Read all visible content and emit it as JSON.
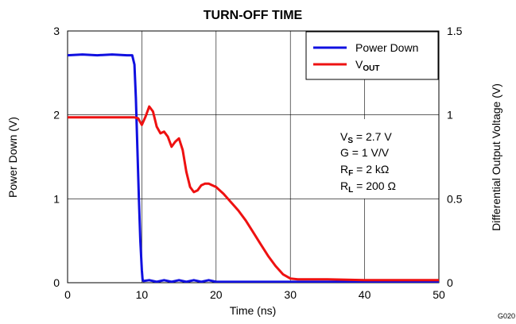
{
  "chart_data": {
    "type": "line",
    "title": "TURN-OFF TIME",
    "xlabel": "Time (ns)",
    "ylabel_left": "Power Down (V)",
    "ylabel_right": "Differential Output Voltage (V)",
    "xlim": [
      0,
      50
    ],
    "ylim_left": [
      0,
      3
    ],
    "ylim_right": [
      0,
      1.5
    ],
    "x_ticks": [
      "0",
      "10",
      "20",
      "30",
      "40",
      "50"
    ],
    "y_left_ticks": [
      "0",
      "1",
      "2",
      "3"
    ],
    "y_right_ticks": [
      "0",
      "0.5",
      "1",
      "1.5"
    ],
    "grid": true,
    "legend_position": "top-right",
    "series": [
      {
        "name": "Power Down",
        "axis": "left",
        "color": "#1010e0",
        "x": [
          0,
          2,
          4,
          6,
          8,
          8.7,
          9.0,
          9.2,
          9.4,
          9.6,
          9.8,
          10.0,
          10.1,
          10.2,
          11,
          12,
          13,
          14,
          15,
          16,
          17,
          18,
          19,
          20,
          25,
          30,
          35,
          40,
          45,
          50
        ],
        "y": [
          2.71,
          2.72,
          2.71,
          2.72,
          2.71,
          2.71,
          2.6,
          2.2,
          1.6,
          1.0,
          0.5,
          0.15,
          0.04,
          0.02,
          0.03,
          0.01,
          0.03,
          0.01,
          0.03,
          0.01,
          0.03,
          0.01,
          0.03,
          0.01,
          0.01,
          0.01,
          0.01,
          0.01,
          0.01,
          0.01
        ]
      },
      {
        "name": "V",
        "name_sub": "OUT",
        "axis": "right",
        "color": "#ee1111",
        "x": [
          0,
          2,
          4,
          6,
          8,
          9,
          9.5,
          10,
          10.5,
          11,
          11.5,
          12,
          12.5,
          13,
          13.5,
          14,
          14.5,
          15,
          15.5,
          16,
          16.5,
          17,
          17.5,
          18,
          18.5,
          19,
          19.5,
          20,
          21,
          22,
          23,
          24,
          25,
          26,
          27,
          28,
          29,
          30,
          31,
          32,
          35,
          40,
          45,
          50
        ],
        "y": [
          0.985,
          0.985,
          0.985,
          0.985,
          0.985,
          0.985,
          0.98,
          0.94,
          0.99,
          1.05,
          1.02,
          0.93,
          0.89,
          0.9,
          0.87,
          0.81,
          0.84,
          0.86,
          0.79,
          0.66,
          0.57,
          0.54,
          0.55,
          0.58,
          0.59,
          0.59,
          0.58,
          0.57,
          0.53,
          0.48,
          0.43,
          0.37,
          0.3,
          0.23,
          0.16,
          0.1,
          0.05,
          0.025,
          0.02,
          0.02,
          0.02,
          0.015,
          0.015,
          0.015
        ]
      }
    ],
    "annotations": [
      {
        "main": "V",
        "sub": "S",
        "rest": " = 2.7 V"
      },
      {
        "main": "G = 1 V/V",
        "sub": "",
        "rest": ""
      },
      {
        "main": "R",
        "sub": "F",
        "rest": " = 2 kΩ"
      },
      {
        "main": "R",
        "sub": "L",
        "rest": " = 200 Ω"
      }
    ],
    "figure_id": "G020"
  }
}
